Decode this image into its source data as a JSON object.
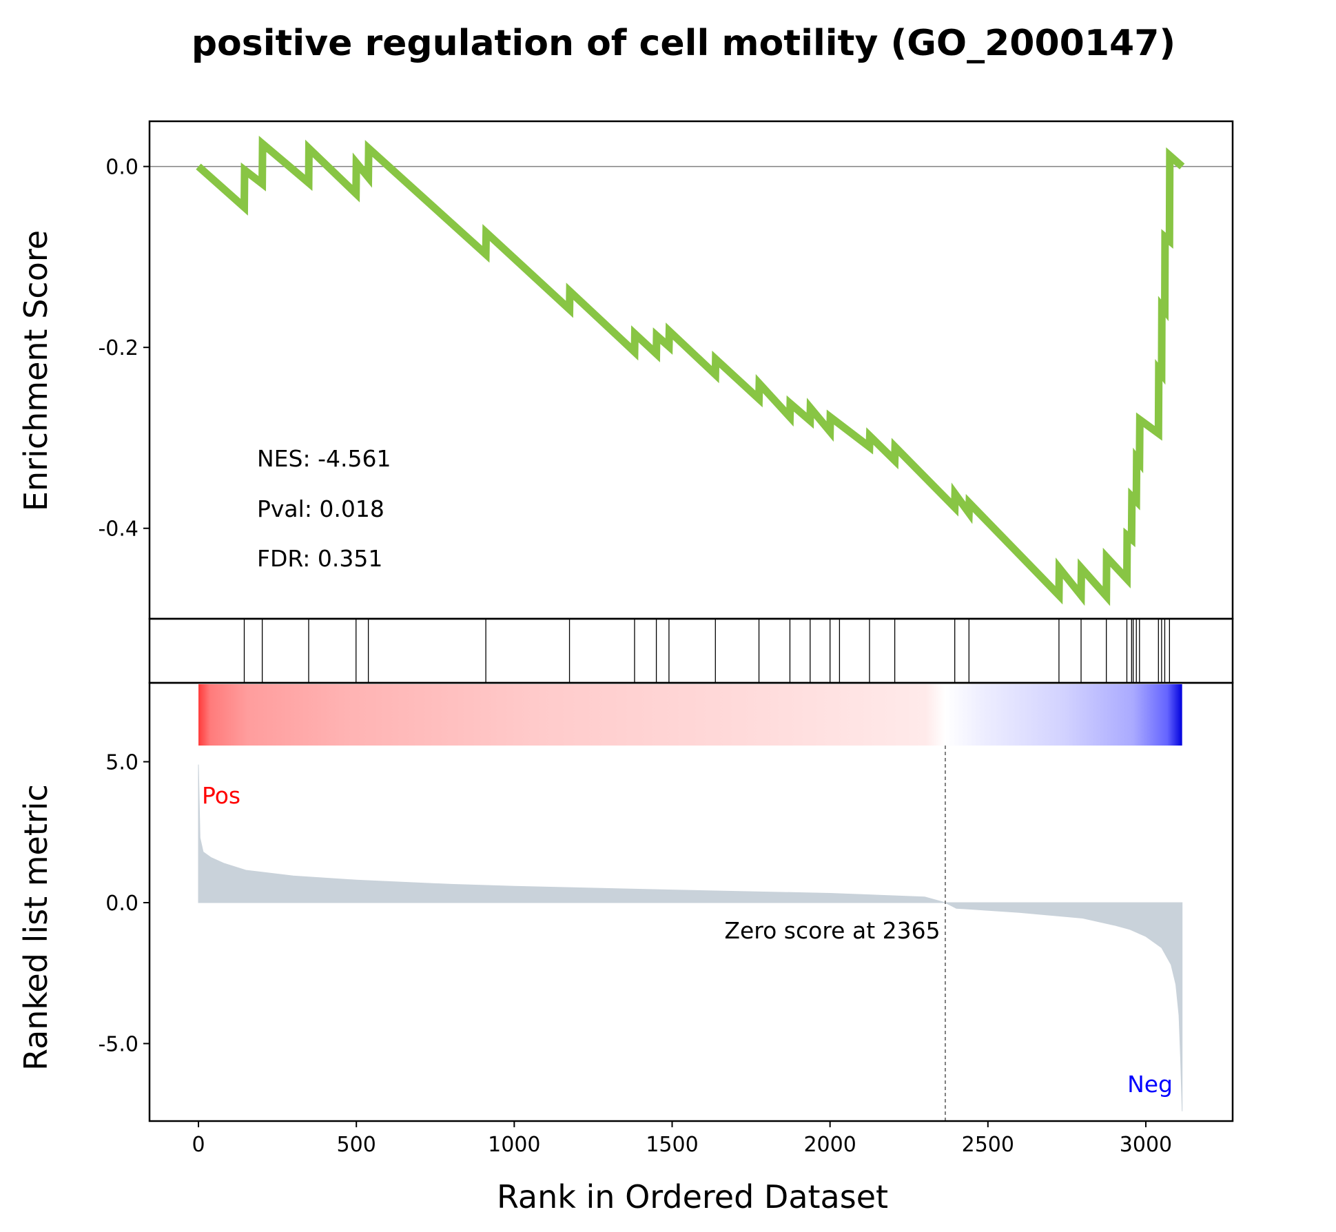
{
  "colors": {
    "es_line": "#88c544",
    "metric_fill": "#c9d2da",
    "zero_line": "#808080",
    "pos_color": "#ff0000",
    "neg_color": "#0000ff",
    "axis": "#000000"
  },
  "chart_data": {
    "type": "line",
    "title": "positive regulation of cell motility (GO_2000147)",
    "xlabel": "Rank in Ordered Dataset",
    "xlim": [
      -155,
      3275
    ],
    "xticks": [
      0,
      500,
      1000,
      1500,
      2000,
      2500,
      3000
    ],
    "xtick_labels": [
      "0",
      "500",
      "1000",
      "1500",
      "2000",
      "2500",
      "3000"
    ],
    "enrichment": {
      "ylabel": "Enrichment Score",
      "ylim": [
        -0.5,
        0.05
      ],
      "yticks": [
        0.0,
        -0.2,
        -0.4
      ],
      "ytick_labels": [
        "0.0",
        "-0.2",
        "-0.4"
      ],
      "zero_line": true,
      "points": [
        [
          0,
          0.0
        ],
        [
          145,
          -0.045
        ],
        [
          146,
          -0.004
        ],
        [
          202,
          -0.019
        ],
        [
          203,
          0.025
        ],
        [
          349,
          -0.018
        ],
        [
          350,
          0.02
        ],
        [
          499,
          -0.03
        ],
        [
          500,
          0.004
        ],
        [
          538,
          -0.012
        ],
        [
          539,
          0.02
        ],
        [
          910,
          -0.097
        ],
        [
          911,
          -0.073
        ],
        [
          1175,
          -0.158
        ],
        [
          1176,
          -0.138
        ],
        [
          1381,
          -0.205
        ],
        [
          1382,
          -0.185
        ],
        [
          1450,
          -0.207
        ],
        [
          1451,
          -0.187
        ],
        [
          1490,
          -0.199
        ],
        [
          1491,
          -0.182
        ],
        [
          1637,
          -0.23
        ],
        [
          1638,
          -0.213
        ],
        [
          1775,
          -0.257
        ],
        [
          1776,
          -0.24
        ],
        [
          1873,
          -0.277
        ],
        [
          1874,
          -0.262
        ],
        [
          1937,
          -0.281
        ],
        [
          1938,
          -0.267
        ],
        [
          2000,
          -0.293
        ],
        [
          2001,
          -0.277
        ],
        [
          2125,
          -0.31
        ],
        [
          2126,
          -0.298
        ],
        [
          2205,
          -0.325
        ],
        [
          2206,
          -0.31
        ],
        [
          2395,
          -0.377
        ],
        [
          2396,
          -0.362
        ],
        [
          2440,
          -0.383
        ],
        [
          2441,
          -0.372
        ],
        [
          2725,
          -0.474
        ],
        [
          2726,
          -0.444
        ],
        [
          2795,
          -0.474
        ],
        [
          2796,
          -0.444
        ],
        [
          2875,
          -0.475
        ],
        [
          2876,
          -0.432
        ],
        [
          2940,
          -0.456
        ],
        [
          2941,
          -0.408
        ],
        [
          2955,
          -0.412
        ],
        [
          2956,
          -0.365
        ],
        [
          2970,
          -0.37
        ],
        [
          2971,
          -0.323
        ],
        [
          2980,
          -0.327
        ],
        [
          2981,
          -0.28
        ],
        [
          3040,
          -0.295
        ],
        [
          3041,
          -0.225
        ],
        [
          3050,
          -0.229
        ],
        [
          3051,
          -0.155
        ],
        [
          3060,
          -0.159
        ],
        [
          3061,
          -0.078
        ],
        [
          3075,
          -0.082
        ],
        [
          3076,
          0.012
        ],
        [
          3115,
          0.0
        ]
      ]
    },
    "hits": [
      145,
      202,
      349,
      499,
      538,
      910,
      1175,
      1381,
      1450,
      1490,
      1637,
      1775,
      1873,
      1937,
      2000,
      2030,
      2125,
      2205,
      2395,
      2440,
      2725,
      2795,
      2875,
      2940,
      2955,
      2960,
      2970,
      2980,
      3040,
      3050,
      3060,
      3075
    ],
    "metric": {
      "ylabel": "Ranked list metric",
      "ylim": [
        -7.75,
        7.8
      ],
      "yticks": [
        5.0,
        0.0,
        -5.0
      ],
      "ytick_labels": [
        "5.0",
        "0.0",
        "-5.0"
      ],
      "n_genes": 3115,
      "zero_cross_rank": 2365,
      "zero_cross_label": "Zero score at 2365",
      "pos_label": "Pos",
      "neg_label": "Neg",
      "profile": [
        [
          0,
          4.9
        ],
        [
          5,
          2.3
        ],
        [
          15,
          1.8
        ],
        [
          40,
          1.6
        ],
        [
          80,
          1.4
        ],
        [
          150,
          1.15
        ],
        [
          300,
          0.95
        ],
        [
          500,
          0.8
        ],
        [
          800,
          0.65
        ],
        [
          1000,
          0.58
        ],
        [
          1500,
          0.45
        ],
        [
          2000,
          0.33
        ],
        [
          2300,
          0.2
        ],
        [
          2365,
          0.0
        ],
        [
          2400,
          -0.2
        ],
        [
          2600,
          -0.35
        ],
        [
          2800,
          -0.55
        ],
        [
          2900,
          -0.8
        ],
        [
          2950,
          -0.95
        ],
        [
          3000,
          -1.2
        ],
        [
          3050,
          -1.6
        ],
        [
          3080,
          -2.2
        ],
        [
          3095,
          -2.9
        ],
        [
          3105,
          -4.0
        ],
        [
          3110,
          -5.5
        ],
        [
          3115,
          -7.4
        ]
      ]
    },
    "annotations": {
      "nes": "NES: -4.561",
      "pval": "Pval: 0.018",
      "fdr": "FDR: 0.351"
    }
  }
}
